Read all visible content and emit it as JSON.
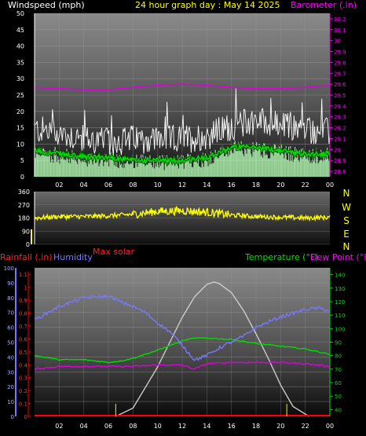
{
  "header": {
    "wind_title": "Windspeed (mph)",
    "graph_title": "24 hour graph day : May 14 2025",
    "baro_title": "Barometer (.in)"
  },
  "wind_dir": {
    "compass": [
      "N",
      "W",
      "S",
      "E",
      "N"
    ]
  },
  "bottom_titles": {
    "rainfall": "Rainfall (.in)",
    "humidity": "Humidity",
    "max_solar": "Max solar",
    "temperature": "Temperature (°F)",
    "dew_point": "Dew Point (°F)"
  },
  "colors": {
    "wind_gust": "#ffffff",
    "wind_avg": "#00dd00",
    "wind_light": "#b8ffb8",
    "barometer": "#dd00dd",
    "direction": "#ffff00",
    "rain": "#ff0000",
    "humidity": "#7777ff",
    "temperature": "#00dd00",
    "dew_point": "#dd00dd",
    "solar": "#cccccc"
  },
  "chart_data": [
    {
      "type": "line",
      "name": "wind-barometer",
      "x_ticks": [
        "02",
        "04",
        "06",
        "08",
        "10",
        "12",
        "14",
        "16",
        "18",
        "20",
        "22",
        "00"
      ],
      "y_left_ticks": [
        "0",
        "5",
        "10",
        "15",
        "20",
        "25",
        "30",
        "35",
        "40",
        "45",
        "50"
      ],
      "y_left_lim": [
        0,
        50
      ],
      "y_right_ticks": [
        "28.8",
        "28.9",
        "29",
        "29.1",
        "29.2",
        "29.3",
        "29.4",
        "29.5",
        "29.6",
        "29.7",
        "29.8",
        "29.9",
        "30",
        "30.1",
        "30.2"
      ],
      "y_right_lim": [
        28.75,
        30.25
      ],
      "gust_profile": [
        [
          0,
          14
        ],
        [
          2,
          13
        ],
        [
          4,
          11
        ],
        [
          6,
          10
        ],
        [
          8,
          11
        ],
        [
          10,
          11
        ],
        [
          12,
          11
        ],
        [
          14,
          12
        ],
        [
          16,
          15
        ],
        [
          18,
          17
        ],
        [
          20,
          15
        ],
        [
          22,
          14
        ],
        [
          24,
          13
        ]
      ],
      "avg_profile": [
        [
          0,
          8
        ],
        [
          2,
          7
        ],
        [
          4,
          6
        ],
        [
          6,
          6
        ],
        [
          8,
          5
        ],
        [
          10,
          5
        ],
        [
          12,
          5
        ],
        [
          14,
          6
        ],
        [
          16,
          9
        ],
        [
          18,
          9
        ],
        [
          20,
          8
        ],
        [
          22,
          7
        ],
        [
          24,
          7
        ]
      ],
      "barometer": [
        [
          0,
          29.57
        ],
        [
          2,
          29.56
        ],
        [
          4,
          29.55
        ],
        [
          6,
          29.55
        ],
        [
          8,
          29.57
        ],
        [
          10,
          29.59
        ],
        [
          12,
          29.6
        ],
        [
          14,
          29.59
        ],
        [
          16,
          29.57
        ],
        [
          18,
          29.56
        ],
        [
          20,
          29.56
        ],
        [
          22,
          29.57
        ],
        [
          24,
          29.59
        ]
      ]
    },
    {
      "type": "line",
      "name": "wind-direction",
      "y_ticks": [
        "0",
        "90",
        "180",
        "270",
        "360"
      ],
      "y_lim": [
        0,
        360
      ],
      "profile": [
        [
          0,
          180
        ],
        [
          2,
          190
        ],
        [
          4,
          190
        ],
        [
          6,
          195
        ],
        [
          8,
          205
        ],
        [
          10,
          225
        ],
        [
          12,
          230
        ],
        [
          14,
          220
        ],
        [
          16,
          200
        ],
        [
          18,
          190
        ],
        [
          20,
          185
        ],
        [
          22,
          180
        ],
        [
          24,
          185
        ]
      ]
    },
    {
      "type": "line",
      "name": "rain-humidity-temp",
      "x_ticks": [
        "02",
        "04",
        "06",
        "08",
        "10",
        "12",
        "14",
        "16",
        "18",
        "20",
        "22",
        "00"
      ],
      "humidity_ticks": [
        "0",
        "10",
        "20",
        "30",
        "40",
        "50",
        "60",
        "70",
        "80",
        "90",
        "100"
      ],
      "humidity_lim": [
        0,
        100
      ],
      "rain_ticks": [
        "0",
        "0.1",
        "0.2",
        "0.3",
        "0.4",
        "0.5",
        "0.6",
        "0.7",
        "0.8",
        "0.9",
        "1",
        "1.1"
      ],
      "rain_lim": [
        0,
        1.15
      ],
      "temp_ticks": [
        "40",
        "50",
        "60",
        "70",
        "80",
        "90",
        "100",
        "110",
        "120",
        "130",
        "140"
      ],
      "temp_lim": [
        35,
        145
      ],
      "humidity": [
        [
          0,
          65
        ],
        [
          2,
          74
        ],
        [
          4,
          80
        ],
        [
          6,
          81
        ],
        [
          7,
          77
        ],
        [
          8,
          74
        ],
        [
          9,
          70
        ],
        [
          10,
          63
        ],
        [
          11,
          57
        ],
        [
          12,
          48
        ],
        [
          13,
          38
        ],
        [
          14,
          41
        ],
        [
          15,
          46
        ],
        [
          16,
          50
        ],
        [
          17,
          54
        ],
        [
          18,
          60
        ],
        [
          20,
          67
        ],
        [
          22,
          72
        ],
        [
          23,
          73
        ],
        [
          24,
          71
        ]
      ],
      "temperature": [
        [
          0,
          80
        ],
        [
          2,
          77
        ],
        [
          4,
          77
        ],
        [
          6,
          75
        ],
        [
          7,
          76
        ],
        [
          8,
          78
        ],
        [
          10,
          84
        ],
        [
          12,
          91
        ],
        [
          13,
          93
        ],
        [
          14,
          93
        ],
        [
          16,
          92
        ],
        [
          18,
          89
        ],
        [
          20,
          87
        ],
        [
          22,
          85
        ],
        [
          24,
          81
        ]
      ],
      "dew_point": [
        [
          0,
          70
        ],
        [
          2,
          72
        ],
        [
          4,
          72
        ],
        [
          6,
          72
        ],
        [
          8,
          72
        ],
        [
          10,
          73
        ],
        [
          12,
          73
        ],
        [
          13,
          70
        ],
        [
          14,
          74
        ],
        [
          16,
          75
        ],
        [
          18,
          75
        ],
        [
          20,
          75
        ],
        [
          22,
          74
        ],
        [
          24,
          72
        ]
      ],
      "max_solar": [
        [
          6.6,
          0
        ],
        [
          8,
          10
        ],
        [
          9,
          35
        ],
        [
          10,
          60
        ],
        [
          11,
          90
        ],
        [
          12,
          120
        ],
        [
          13,
          145
        ],
        [
          14,
          160
        ],
        [
          14.6,
          163
        ],
        [
          15,
          161
        ],
        [
          16,
          150
        ],
        [
          17,
          128
        ],
        [
          18,
          100
        ],
        [
          19,
          70
        ],
        [
          20,
          38
        ],
        [
          21,
          12
        ],
        [
          22.3,
          0
        ]
      ],
      "rain_markers": [
        6.6,
        20.5
      ],
      "rainfall": [
        [
          0,
          0
        ],
        [
          24,
          0
        ]
      ]
    }
  ]
}
